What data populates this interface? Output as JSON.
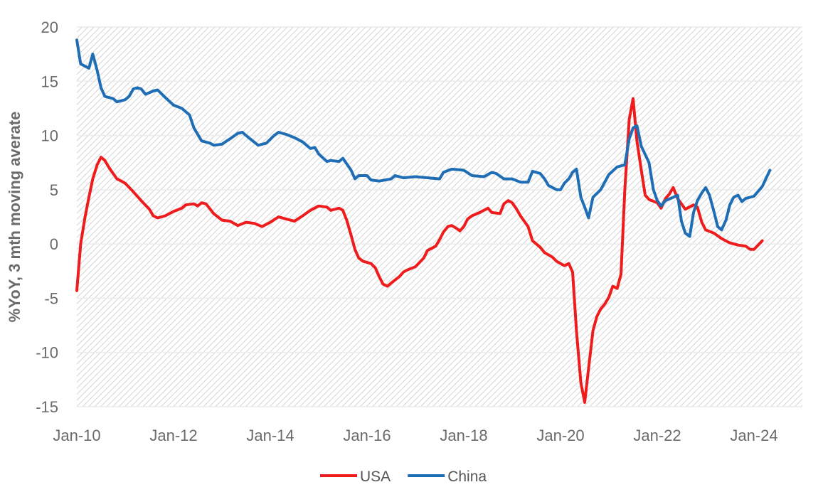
{
  "chart_data": {
    "type": "line",
    "title": "",
    "xlabel": "",
    "ylabel": "%YoY, 3 mth moving averate",
    "ylim": [
      -15,
      20
    ],
    "yticks": [
      20,
      15,
      10,
      5,
      0,
      -5,
      -10,
      -15
    ],
    "xlim": [
      2010.0,
      2025.0
    ],
    "xticks": [
      {
        "label": "Jan-10",
        "x": 2010.0
      },
      {
        "label": "Jan-12",
        "x": 2012.0
      },
      {
        "label": "Jan-14",
        "x": 2014.0
      },
      {
        "label": "Jan-16",
        "x": 2016.0
      },
      {
        "label": "Jan-18",
        "x": 2018.0
      },
      {
        "label": "Jan-20",
        "x": 2020.0
      },
      {
        "label": "Jan-22",
        "x": 2022.0
      },
      {
        "label": "Jan-24",
        "x": 2024.0
      }
    ],
    "grid": true,
    "legend_position": "bottom",
    "series": [
      {
        "name": "USA",
        "color": "#ee1c1c",
        "points": [
          [
            2010.0,
            -4.3
          ],
          [
            2010.08,
            0.0
          ],
          [
            2010.17,
            2.5
          ],
          [
            2010.25,
            4.3
          ],
          [
            2010.33,
            6.0
          ],
          [
            2010.42,
            7.3
          ],
          [
            2010.5,
            8.0
          ],
          [
            2010.58,
            7.7
          ],
          [
            2010.67,
            7.0
          ],
          [
            2010.75,
            6.5
          ],
          [
            2010.83,
            6.0
          ],
          [
            2010.92,
            5.8
          ],
          [
            2011.0,
            5.6
          ],
          [
            2011.17,
            4.8
          ],
          [
            2011.33,
            4.0
          ],
          [
            2011.5,
            3.2
          ],
          [
            2011.58,
            2.6
          ],
          [
            2011.67,
            2.4
          ],
          [
            2011.83,
            2.6
          ],
          [
            2012.0,
            3.0
          ],
          [
            2012.17,
            3.3
          ],
          [
            2012.25,
            3.6
          ],
          [
            2012.42,
            3.7
          ],
          [
            2012.5,
            3.5
          ],
          [
            2012.58,
            3.8
          ],
          [
            2012.67,
            3.7
          ],
          [
            2012.83,
            2.8
          ],
          [
            2013.0,
            2.2
          ],
          [
            2013.17,
            2.1
          ],
          [
            2013.33,
            1.7
          ],
          [
            2013.5,
            2.0
          ],
          [
            2013.67,
            1.9
          ],
          [
            2013.83,
            1.6
          ],
          [
            2014.0,
            2.0
          ],
          [
            2014.17,
            2.5
          ],
          [
            2014.33,
            2.3
          ],
          [
            2014.5,
            2.1
          ],
          [
            2014.67,
            2.6
          ],
          [
            2014.83,
            3.1
          ],
          [
            2015.0,
            3.5
          ],
          [
            2015.17,
            3.4
          ],
          [
            2015.25,
            3.1
          ],
          [
            2015.42,
            3.3
          ],
          [
            2015.5,
            3.1
          ],
          [
            2015.58,
            2.2
          ],
          [
            2015.67,
            0.8
          ],
          [
            2015.75,
            -0.5
          ],
          [
            2015.83,
            -1.3
          ],
          [
            2015.92,
            -1.6
          ],
          [
            2016.08,
            -1.8
          ],
          [
            2016.17,
            -2.2
          ],
          [
            2016.25,
            -3.0
          ],
          [
            2016.33,
            -3.7
          ],
          [
            2016.42,
            -3.9
          ],
          [
            2016.5,
            -3.6
          ],
          [
            2016.67,
            -3.0
          ],
          [
            2016.75,
            -2.6
          ],
          [
            2016.83,
            -2.4
          ],
          [
            2017.0,
            -2.1
          ],
          [
            2017.17,
            -1.3
          ],
          [
            2017.25,
            -0.6
          ],
          [
            2017.42,
            -0.2
          ],
          [
            2017.5,
            0.4
          ],
          [
            2017.58,
            1.1
          ],
          [
            2017.67,
            1.6
          ],
          [
            2017.75,
            1.7
          ],
          [
            2017.83,
            1.5
          ],
          [
            2017.92,
            1.2
          ],
          [
            2018.0,
            1.6
          ],
          [
            2018.08,
            2.3
          ],
          [
            2018.17,
            2.6
          ],
          [
            2018.33,
            2.9
          ],
          [
            2018.5,
            3.3
          ],
          [
            2018.58,
            2.9
          ],
          [
            2018.75,
            2.8
          ],
          [
            2018.83,
            3.7
          ],
          [
            2018.92,
            4.0
          ],
          [
            2019.0,
            3.8
          ],
          [
            2019.08,
            3.3
          ],
          [
            2019.17,
            2.6
          ],
          [
            2019.25,
            2.1
          ],
          [
            2019.33,
            1.6
          ],
          [
            2019.42,
            0.3
          ],
          [
            2019.58,
            -0.3
          ],
          [
            2019.67,
            -0.8
          ],
          [
            2019.83,
            -1.2
          ],
          [
            2019.92,
            -1.6
          ],
          [
            2020.0,
            -1.8
          ],
          [
            2020.08,
            -2.0
          ],
          [
            2020.17,
            -1.8
          ],
          [
            2020.25,
            -2.6
          ],
          [
            2020.33,
            -8.0
          ],
          [
            2020.42,
            -12.8
          ],
          [
            2020.5,
            -14.6
          ],
          [
            2020.58,
            -11.5
          ],
          [
            2020.67,
            -8.0
          ],
          [
            2020.75,
            -6.7
          ],
          [
            2020.83,
            -6.0
          ],
          [
            2020.92,
            -5.5
          ],
          [
            2021.0,
            -4.9
          ],
          [
            2021.08,
            -3.9
          ],
          [
            2021.17,
            -4.1
          ],
          [
            2021.25,
            -2.8
          ],
          [
            2021.33,
            5.0
          ],
          [
            2021.42,
            11.5
          ],
          [
            2021.5,
            13.4
          ],
          [
            2021.58,
            9.5
          ],
          [
            2021.67,
            6.8
          ],
          [
            2021.75,
            4.5
          ],
          [
            2021.83,
            4.1
          ],
          [
            2022.0,
            3.8
          ],
          [
            2022.08,
            3.3
          ],
          [
            2022.17,
            4.2
          ],
          [
            2022.25,
            4.6
          ],
          [
            2022.33,
            5.2
          ],
          [
            2022.42,
            4.2
          ],
          [
            2022.58,
            3.2
          ],
          [
            2022.75,
            3.6
          ],
          [
            2022.83,
            3.4
          ],
          [
            2022.92,
            2.0
          ],
          [
            2023.0,
            1.3
          ],
          [
            2023.17,
            1.0
          ],
          [
            2023.33,
            0.5
          ],
          [
            2023.5,
            0.1
          ],
          [
            2023.67,
            -0.1
          ],
          [
            2023.83,
            -0.2
          ],
          [
            2023.92,
            -0.5
          ],
          [
            2024.0,
            -0.5
          ],
          [
            2024.17,
            0.3
          ]
        ]
      },
      {
        "name": "China",
        "color": "#1f6eb5",
        "points": [
          [
            2010.0,
            18.8
          ],
          [
            2010.08,
            16.6
          ],
          [
            2010.25,
            16.2
          ],
          [
            2010.33,
            17.5
          ],
          [
            2010.42,
            16.0
          ],
          [
            2010.5,
            14.4
          ],
          [
            2010.58,
            13.6
          ],
          [
            2010.75,
            13.4
          ],
          [
            2010.83,
            13.1
          ],
          [
            2011.0,
            13.3
          ],
          [
            2011.08,
            13.6
          ],
          [
            2011.17,
            14.3
          ],
          [
            2011.25,
            14.4
          ],
          [
            2011.33,
            14.3
          ],
          [
            2011.42,
            13.8
          ],
          [
            2011.58,
            14.1
          ],
          [
            2011.67,
            14.2
          ],
          [
            2011.83,
            13.5
          ],
          [
            2012.0,
            12.8
          ],
          [
            2012.17,
            12.5
          ],
          [
            2012.33,
            11.9
          ],
          [
            2012.42,
            10.7
          ],
          [
            2012.58,
            9.5
          ],
          [
            2012.75,
            9.3
          ],
          [
            2012.83,
            9.1
          ],
          [
            2013.0,
            9.2
          ],
          [
            2013.17,
            9.7
          ],
          [
            2013.33,
            10.2
          ],
          [
            2013.42,
            10.3
          ],
          [
            2013.58,
            9.7
          ],
          [
            2013.75,
            9.1
          ],
          [
            2013.92,
            9.3
          ],
          [
            2014.08,
            10.0
          ],
          [
            2014.17,
            10.3
          ],
          [
            2014.33,
            10.1
          ],
          [
            2014.5,
            9.8
          ],
          [
            2014.67,
            9.4
          ],
          [
            2014.83,
            8.8
          ],
          [
            2014.92,
            8.9
          ],
          [
            2015.0,
            8.3
          ],
          [
            2015.17,
            7.6
          ],
          [
            2015.25,
            7.7
          ],
          [
            2015.42,
            7.6
          ],
          [
            2015.5,
            7.9
          ],
          [
            2015.67,
            6.8
          ],
          [
            2015.75,
            6.0
          ],
          [
            2015.83,
            6.3
          ],
          [
            2016.0,
            6.3
          ],
          [
            2016.08,
            5.9
          ],
          [
            2016.25,
            5.8
          ],
          [
            2016.5,
            6.0
          ],
          [
            2016.58,
            6.3
          ],
          [
            2016.75,
            6.1
          ],
          [
            2017.0,
            6.2
          ],
          [
            2017.5,
            6.0
          ],
          [
            2017.58,
            6.6
          ],
          [
            2017.75,
            6.9
          ],
          [
            2018.0,
            6.8
          ],
          [
            2018.17,
            6.3
          ],
          [
            2018.42,
            6.2
          ],
          [
            2018.58,
            6.6
          ],
          [
            2018.67,
            6.5
          ],
          [
            2018.83,
            6.0
          ],
          [
            2019.0,
            6.0
          ],
          [
            2019.17,
            5.7
          ],
          [
            2019.33,
            5.7
          ],
          [
            2019.42,
            6.7
          ],
          [
            2019.58,
            6.5
          ],
          [
            2019.67,
            6.0
          ],
          [
            2019.75,
            5.4
          ],
          [
            2019.92,
            5.0
          ],
          [
            2020.0,
            5.0
          ],
          [
            2020.08,
            5.6
          ],
          [
            2020.17,
            6.0
          ],
          [
            2020.25,
            6.6
          ],
          [
            2020.33,
            6.9
          ],
          [
            2020.42,
            4.3
          ],
          [
            2020.5,
            3.4
          ],
          [
            2020.58,
            2.4
          ],
          [
            2020.67,
            4.3
          ],
          [
            2020.83,
            5.0
          ],
          [
            2021.0,
            6.4
          ],
          [
            2021.17,
            7.1
          ],
          [
            2021.33,
            7.3
          ],
          [
            2021.42,
            9.7
          ],
          [
            2021.5,
            10.7
          ],
          [
            2021.58,
            10.9
          ],
          [
            2021.67,
            9.0
          ],
          [
            2021.83,
            7.5
          ],
          [
            2021.92,
            5.0
          ],
          [
            2022.0,
            4.0
          ],
          [
            2022.08,
            3.5
          ],
          [
            2022.17,
            4.0
          ],
          [
            2022.33,
            4.3
          ],
          [
            2022.42,
            4.5
          ],
          [
            2022.5,
            2.1
          ],
          [
            2022.58,
            1.0
          ],
          [
            2022.67,
            0.7
          ],
          [
            2022.75,
            2.9
          ],
          [
            2022.83,
            4.0
          ],
          [
            2022.92,
            4.7
          ],
          [
            2023.0,
            5.2
          ],
          [
            2023.08,
            4.5
          ],
          [
            2023.17,
            3.0
          ],
          [
            2023.25,
            1.6
          ],
          [
            2023.33,
            1.3
          ],
          [
            2023.42,
            2.2
          ],
          [
            2023.5,
            3.6
          ],
          [
            2023.58,
            4.3
          ],
          [
            2023.67,
            4.5
          ],
          [
            2023.75,
            3.9
          ],
          [
            2023.83,
            4.2
          ],
          [
            2024.0,
            4.4
          ],
          [
            2024.17,
            5.3
          ],
          [
            2024.33,
            6.8
          ]
        ]
      }
    ]
  }
}
